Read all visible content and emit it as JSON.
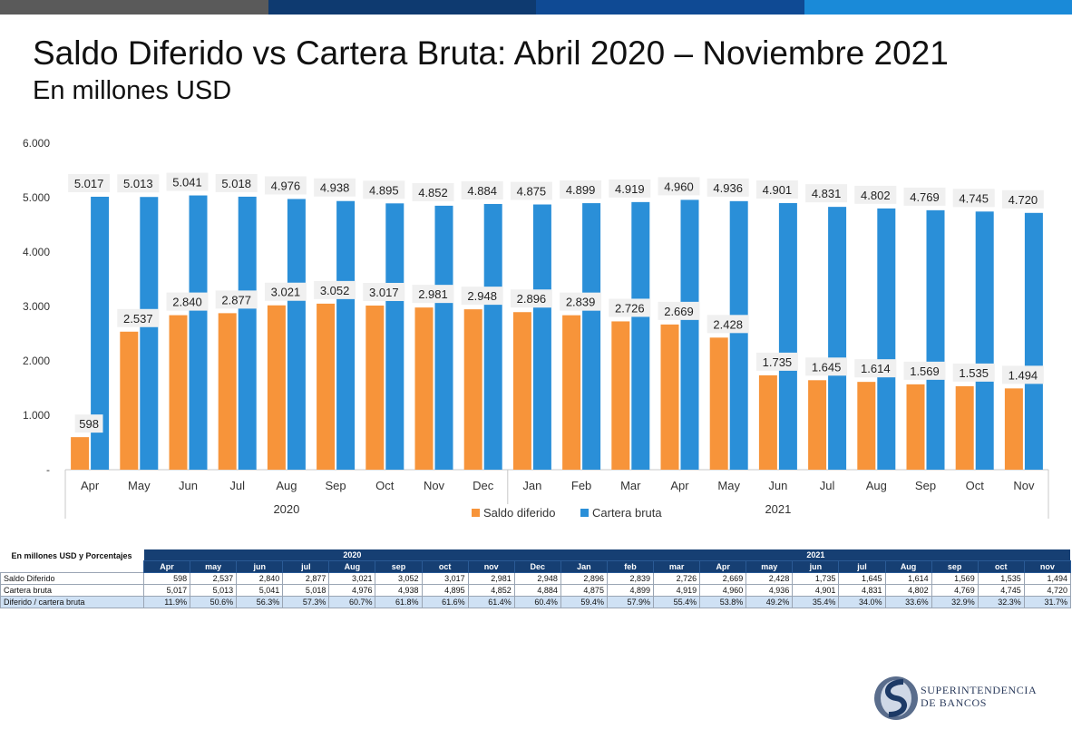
{
  "header": {
    "title": "Saldo Diferido vs Cartera Bruta: Abril 2020 – Noviembre 2021",
    "subtitle": "En millones USD"
  },
  "colors": {
    "bar1": "#5a5a5a",
    "bar2": "#0e3a70",
    "bar3": "#0f4a94",
    "bar4": "#1a8ad8",
    "saldo": "#f7943a",
    "cartera": "#2a8fd8",
    "table_header": "#163f73",
    "table_pct_row": "#cfe1f4"
  },
  "chart_data": {
    "type": "bar",
    "ylim": [
      0,
      6000
    ],
    "yticks": [
      "-",
      "1.000",
      "2.000",
      "3.000",
      "4.000",
      "5.000",
      "6.000"
    ],
    "categories": [
      "Apr",
      "May",
      "Jun",
      "Jul",
      "Aug",
      "Sep",
      "Oct",
      "Nov",
      "Dec",
      "Jan",
      "Feb",
      "Mar",
      "Apr",
      "May",
      "Jun",
      "Jul",
      "Aug",
      "Sep",
      "Oct",
      "Nov"
    ],
    "year_groups": [
      {
        "label": "2020",
        "count": 9
      },
      {
        "label": "2021",
        "count": 11
      }
    ],
    "series": [
      {
        "name": "Saldo diferido",
        "color": "#f7943a",
        "values": [
          598,
          2537,
          2840,
          2877,
          3021,
          3052,
          3017,
          2981,
          2948,
          2896,
          2839,
          2726,
          2669,
          2428,
          1735,
          1645,
          1614,
          1569,
          1535,
          1494
        ],
        "labels": [
          "598",
          "2.537",
          "2.840",
          "2.877",
          "3.021",
          "3.052",
          "3.017",
          "2.981",
          "2.948",
          "2.896",
          "2.839",
          "2.726",
          "2.669",
          "2.428",
          "1.735",
          "1.645",
          "1.614",
          "1.569",
          "1.535",
          "1.494"
        ]
      },
      {
        "name": "Cartera bruta",
        "color": "#2a8fd8",
        "values": [
          5017,
          5013,
          5041,
          5018,
          4976,
          4938,
          4895,
          4852,
          4884,
          4875,
          4899,
          4919,
          4960,
          4936,
          4901,
          4831,
          4802,
          4769,
          4745,
          4720
        ],
        "labels": [
          "5.017",
          "5.013",
          "5.041",
          "5.018",
          "4.976",
          "4.938",
          "4.895",
          "4.852",
          "4.884",
          "4.875",
          "4.899",
          "4.919",
          "4.960",
          "4.936",
          "4.901",
          "4.831",
          "4.802",
          "4.769",
          "4.745",
          "4.720"
        ]
      }
    ],
    "legend_position": "bottom-center",
    "grid": false
  },
  "table": {
    "label": "En millones USD y Porcentajes",
    "year_2020": "2020",
    "year_2021": "2021",
    "months": [
      "Apr",
      "may",
      "jun",
      "jul",
      "Aug",
      "sep",
      "oct",
      "nov",
      "Dec",
      "Jan",
      "feb",
      "mar",
      "Apr",
      "may",
      "jun",
      "jul",
      "Aug",
      "sep",
      "oct",
      "nov"
    ],
    "rows": [
      {
        "label": "Saldo Diferido",
        "values": [
          "598",
          "2,537",
          "2,840",
          "2,877",
          "3,021",
          "3,052",
          "3,017",
          "2,981",
          "2,948",
          "2,896",
          "2,839",
          "2,726",
          "2,669",
          "2,428",
          "1,735",
          "1,645",
          "1,614",
          "1,569",
          "1,535",
          "1,494"
        ]
      },
      {
        "label": "Cartera bruta",
        "values": [
          "5,017",
          "5,013",
          "5,041",
          "5,018",
          "4,976",
          "4,938",
          "4,895",
          "4,852",
          "4,884",
          "4,875",
          "4,899",
          "4,919",
          "4,960",
          "4,936",
          "4,901",
          "4,831",
          "4,802",
          "4,769",
          "4,745",
          "4,720"
        ]
      },
      {
        "label": "Diferido / cartera bruta",
        "values": [
          "11.9%",
          "50.6%",
          "56.3%",
          "57.3%",
          "60.7%",
          "61.8%",
          "61.6%",
          "61.4%",
          "60.4%",
          "59.4%",
          "57.9%",
          "55.4%",
          "53.8%",
          "49.2%",
          "35.4%",
          "34.0%",
          "33.6%",
          "32.9%",
          "32.3%",
          "31.7%"
        ]
      }
    ]
  },
  "logo": {
    "line1": "SUPERINTENDENCIA",
    "line2": "DE BANCOS"
  }
}
